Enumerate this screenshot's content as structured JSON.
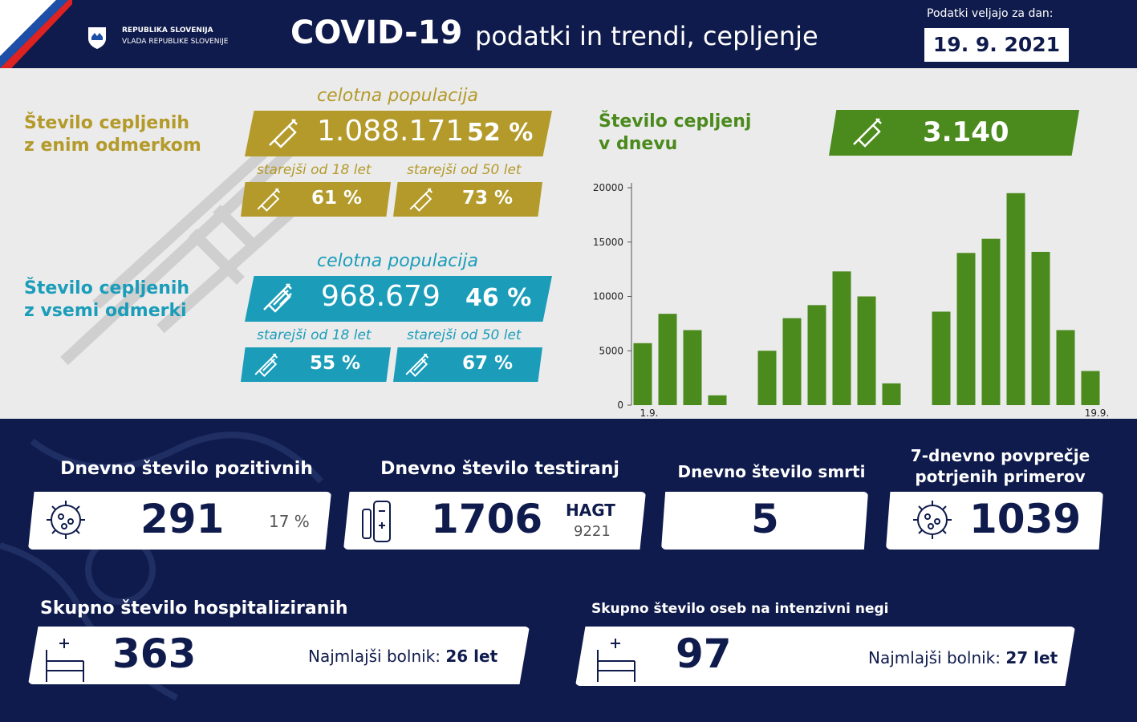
{
  "header": {
    "org": [
      "REPUBLIKA SLOVENIJA",
      "VLADA REPUBLIKE SLOVENIJE"
    ],
    "title": "COVID-19",
    "subtitle": "podatki in trendi, cepljenje",
    "date_label": "Podatki veljajo za dan:",
    "date": "19. 9. 2021"
  },
  "vaccination": {
    "one_dose": {
      "label": [
        "Število cepljenih",
        "z enim odmerkom"
      ],
      "population_label": "celotna populacija",
      "count": "1.088.171",
      "percent": "52 %",
      "age18_label": "starejši od 18 let",
      "age18": "61 %",
      "age50_label": "starejši od 50 let",
      "age50": "73 %"
    },
    "full": {
      "label": [
        "Število cepljenih",
        "z vsemi odmerki"
      ],
      "population_label": "celotna populacija",
      "count": "968.679",
      "percent": "46 %",
      "age18_label": "starejši od 18 let",
      "age18": "55 %",
      "age50_label": "starejši od 50 let",
      "age50": "67 %"
    },
    "daily": {
      "label": [
        "Število cepljenj",
        "v dnevu"
      ],
      "value": "3.140"
    }
  },
  "chart_data": {
    "type": "bar",
    "color": "#4b8a1d",
    "categories": [
      "1.9.",
      null,
      null,
      null,
      null,
      null,
      null,
      null,
      null,
      null,
      null,
      null,
      null,
      null,
      null,
      null,
      null,
      null,
      "19.9."
    ],
    "values": [
      5700,
      8400,
      6900,
      900,
      0,
      5000,
      8000,
      9200,
      12300,
      10000,
      2000,
      0,
      8600,
      14000,
      15300,
      19500,
      14100,
      6900,
      3140
    ],
    "ylim": [
      0,
      20000
    ],
    "yticks": [
      0,
      5000,
      10000,
      15000,
      20000
    ]
  },
  "stats": {
    "positives": {
      "title": "Dnevno število pozitivnih",
      "value": "291",
      "percent": "17 %"
    },
    "tests": {
      "title": "Dnevno število testiranj",
      "value": "1706",
      "hagt_label": "HAGT",
      "hagt": "9221"
    },
    "deaths": {
      "title": "Dnevno število smrti",
      "value": "5"
    },
    "average": {
      "title": [
        "7-dnevno povprečje",
        "potrjenih primerov"
      ],
      "value": "1039"
    },
    "hospitalized": {
      "title": "Skupno število hospitaliziranih",
      "value": "363",
      "youngest_label": "Najmlajši bolnik:",
      "youngest": "26 let"
    },
    "icu": {
      "title": "Skupno število oseb na intenzivni negi",
      "value": "97",
      "youngest_label": "Najmlajši bolnik:",
      "youngest": "27 let"
    }
  }
}
